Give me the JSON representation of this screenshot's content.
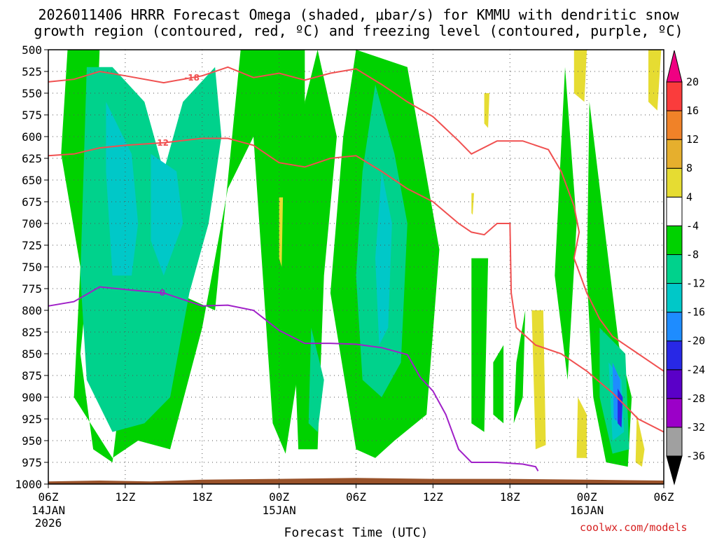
{
  "title_line1": "2026011406 HRRR Forecast Omega (shaded, μbar/s) for KMMU with dendritic snow",
  "title_line2": "growth region (contoured, red, ºC) and freezing level (contoured, purple, ºC)",
  "watermark": "coolwx.com/models",
  "chart_data": {
    "type": "heatmap",
    "title": "2026011406 HRRR Forecast Omega (shaded, μbar/s) for KMMU with dendritic snow growth region (contoured, red, ºC) and freezing level (contoured, purple, ºC)",
    "xlabel": "Forecast Time (UTC)",
    "ylabel": "",
    "x_ticks": [
      {
        "hour": 0,
        "label": "06Z",
        "sub": [
          "14JAN",
          "2026"
        ]
      },
      {
        "hour": 6,
        "label": "12Z",
        "sub": []
      },
      {
        "hour": 12,
        "label": "18Z",
        "sub": []
      },
      {
        "hour": 18,
        "label": "00Z",
        "sub": [
          "15JAN"
        ]
      },
      {
        "hour": 24,
        "label": "06Z",
        "sub": []
      },
      {
        "hour": 30,
        "label": "12Z",
        "sub": []
      },
      {
        "hour": 36,
        "label": "18Z",
        "sub": []
      },
      {
        "hour": 42,
        "label": "00Z",
        "sub": [
          "16JAN"
        ]
      },
      {
        "hour": 48,
        "label": "06Z",
        "sub": []
      }
    ],
    "xlim": [
      0,
      48
    ],
    "y_ticks": [
      500,
      525,
      550,
      575,
      600,
      625,
      650,
      675,
      700,
      725,
      750,
      775,
      800,
      825,
      850,
      875,
      900,
      925,
      950,
      975,
      1000
    ],
    "ylim": [
      1000,
      500
    ],
    "y_units": "hPa",
    "grid": true,
    "colorbar": {
      "levels": [
        -36,
        -32,
        -28,
        -24,
        -20,
        -16,
        -12,
        -8,
        -4,
        4,
        8,
        12,
        16,
        20
      ],
      "colors": [
        "#a0a0a0",
        "#9b00c8",
        "#5a00c8",
        "#2828e6",
        "#1e8cff",
        "#00c8c8",
        "#00d28c",
        "#00d200",
        "#ffffff",
        "#e6dc32",
        "#e6af2d",
        "#f08228",
        "#fa3c3c",
        "#f00082"
      ],
      "extend": "both",
      "under_color": "#000000",
      "over_color": "#f00082"
    },
    "omega_regions": [
      {
        "level": -8,
        "poly": [
          [
            1.5,
            500
          ],
          [
            4,
            500
          ],
          [
            3.5,
            700
          ],
          [
            2.5,
            850
          ],
          [
            3.5,
            960
          ],
          [
            5,
            975
          ],
          [
            6,
            850
          ],
          [
            10,
            780
          ],
          [
            13,
            800
          ],
          [
            15,
            500
          ],
          [
            20,
            500
          ],
          [
            20,
            820
          ],
          [
            18.5,
            965
          ],
          [
            17.5,
            930
          ],
          [
            16,
            600
          ],
          [
            14,
            660
          ],
          [
            12,
            820
          ],
          [
            9.5,
            960
          ],
          [
            7,
            950
          ],
          [
            5,
            970
          ],
          [
            2,
            900
          ],
          [
            2.5,
            750
          ],
          [
            1,
            620
          ]
        ]
      },
      {
        "level": -8,
        "poly": [
          [
            24,
            500
          ],
          [
            28,
            520
          ],
          [
            30.5,
            730
          ],
          [
            29.5,
            920
          ],
          [
            27,
            950
          ],
          [
            25.5,
            970
          ],
          [
            24,
            960
          ],
          [
            22,
            780
          ],
          [
            23,
            600
          ]
        ]
      },
      {
        "level": -8,
        "poly": [
          [
            21,
            500
          ],
          [
            22.5,
            600
          ],
          [
            21.5,
            760
          ],
          [
            21,
            960
          ],
          [
            19.5,
            960
          ],
          [
            19,
            760
          ],
          [
            20,
            560
          ]
        ]
      },
      {
        "level": -8,
        "poly": [
          [
            42.2,
            560
          ],
          [
            43.5,
            720
          ],
          [
            44.5,
            840
          ],
          [
            45.5,
            900
          ],
          [
            45.2,
            980
          ],
          [
            43.5,
            975
          ],
          [
            42.5,
            900
          ],
          [
            42,
            760
          ]
        ]
      },
      {
        "level": -8,
        "poly": [
          [
            40.3,
            520
          ],
          [
            41.2,
            700
          ],
          [
            40.5,
            880
          ],
          [
            39.5,
            760
          ]
        ]
      },
      {
        "level": -8,
        "poly": [
          [
            36.5,
            860
          ],
          [
            37.2,
            800
          ],
          [
            37,
            900
          ],
          [
            36.3,
            930
          ]
        ]
      },
      {
        "level": -8,
        "poly": [
          [
            34.7,
            860
          ],
          [
            35.5,
            840
          ],
          [
            35.5,
            930
          ],
          [
            34.7,
            920
          ]
        ]
      },
      {
        "level": -8,
        "poly": [
          [
            33,
            740
          ],
          [
            34.3,
            740
          ],
          [
            34,
            940
          ],
          [
            33,
            930
          ]
        ]
      },
      {
        "level": -12,
        "poly": [
          [
            3,
            520
          ],
          [
            5,
            520
          ],
          [
            7.5,
            560
          ],
          [
            9,
            640
          ],
          [
            10.5,
            560
          ],
          [
            13,
            520
          ],
          [
            13.5,
            600
          ],
          [
            12.5,
            700
          ],
          [
            11,
            780
          ],
          [
            9.5,
            900
          ],
          [
            7.5,
            930
          ],
          [
            5,
            940
          ],
          [
            3,
            880
          ],
          [
            2.5,
            760
          ]
        ]
      },
      {
        "level": -12,
        "poly": [
          [
            25.5,
            540
          ],
          [
            27,
            620
          ],
          [
            28,
            700
          ],
          [
            27.5,
            860
          ],
          [
            26,
            900
          ],
          [
            24.5,
            880
          ],
          [
            24,
            760
          ],
          [
            24.5,
            640
          ]
        ]
      },
      {
        "level": -12,
        "poly": [
          [
            43,
            820
          ],
          [
            45,
            850
          ],
          [
            45.3,
            960
          ],
          [
            44,
            965
          ],
          [
            43,
            900
          ]
        ]
      },
      {
        "level": -12,
        "poly": [
          [
            20.5,
            820
          ],
          [
            21.5,
            880
          ],
          [
            21,
            940
          ],
          [
            20.3,
            930
          ]
        ]
      },
      {
        "level": -16,
        "poly": [
          [
            4.5,
            560
          ],
          [
            6.5,
            620
          ],
          [
            7,
            700
          ],
          [
            6.5,
            760
          ],
          [
            5,
            760
          ],
          [
            4.5,
            640
          ]
        ]
      },
      {
        "level": -16,
        "poly": [
          [
            8,
            620
          ],
          [
            10,
            640
          ],
          [
            10.5,
            700
          ],
          [
            9,
            760
          ],
          [
            8,
            720
          ]
        ]
      },
      {
        "level": -16,
        "poly": [
          [
            26,
            640
          ],
          [
            26.8,
            700
          ],
          [
            26.5,
            820
          ],
          [
            25.8,
            840
          ],
          [
            25.5,
            740
          ]
        ]
      },
      {
        "level": -16,
        "poly": [
          [
            43.7,
            860
          ],
          [
            44.7,
            880
          ],
          [
            44.9,
            940
          ],
          [
            44,
            950
          ]
        ]
      },
      {
        "level": -20,
        "poly": [
          [
            44,
            860
          ],
          [
            44.6,
            880
          ],
          [
            44.6,
            930
          ],
          [
            44.1,
            925
          ]
        ]
      },
      {
        "level": -24,
        "poly": [
          [
            44.4,
            890
          ],
          [
            44.8,
            900
          ],
          [
            44.7,
            935
          ],
          [
            44.4,
            930
          ]
        ]
      },
      {
        "level": 4,
        "poly": [
          [
            37.7,
            800
          ],
          [
            38.6,
            800
          ],
          [
            38.8,
            955
          ],
          [
            38,
            960
          ]
        ]
      },
      {
        "level": 4,
        "poly": [
          [
            41.3,
            900
          ],
          [
            42,
            920
          ],
          [
            42,
            970
          ],
          [
            41.2,
            970
          ]
        ]
      },
      {
        "level": 4,
        "poly": [
          [
            45.9,
            920
          ],
          [
            46.5,
            960
          ],
          [
            46.3,
            980
          ],
          [
            45.8,
            975
          ]
        ]
      },
      {
        "level": 4,
        "poly": [
          [
            46.8,
            500
          ],
          [
            47.8,
            500
          ],
          [
            47.5,
            570
          ],
          [
            46.8,
            560
          ]
        ]
      },
      {
        "level": 4,
        "poly": [
          [
            41,
            500
          ],
          [
            42,
            500
          ],
          [
            41.8,
            560
          ],
          [
            41,
            550
          ]
        ]
      },
      {
        "level": 4,
        "poly": [
          [
            18,
            670
          ],
          [
            18.3,
            670
          ],
          [
            18.2,
            750
          ],
          [
            18,
            740
          ]
        ]
      },
      {
        "level": 4,
        "poly": [
          [
            34,
            550
          ],
          [
            34.4,
            550
          ],
          [
            34.3,
            590
          ],
          [
            34,
            585
          ]
        ]
      },
      {
        "level": 4,
        "poly": [
          [
            33,
            665
          ],
          [
            33.2,
            665
          ],
          [
            33.1,
            690
          ],
          [
            33,
            688
          ]
        ]
      }
    ],
    "contours": [
      {
        "name": "-18",
        "color": "#f05050",
        "label_at_hour": 11.2,
        "points": [
          [
            0,
            537
          ],
          [
            2,
            534
          ],
          [
            4,
            525
          ],
          [
            6,
            530
          ],
          [
            9,
            538
          ],
          [
            12,
            530
          ],
          [
            14,
            520
          ],
          [
            16,
            532
          ],
          [
            18,
            527
          ],
          [
            20,
            535
          ],
          [
            22,
            527
          ],
          [
            24,
            522
          ],
          [
            26,
            540
          ],
          [
            28,
            560
          ],
          [
            30,
            577
          ],
          [
            32,
            605
          ],
          [
            33,
            620
          ],
          [
            35,
            605
          ],
          [
            37,
            605
          ],
          [
            39,
            615
          ],
          [
            40,
            640
          ],
          [
            41,
            680
          ],
          [
            41.4,
            710
          ],
          [
            41,
            740
          ],
          [
            42,
            780
          ],
          [
            43,
            810
          ],
          [
            44,
            830
          ],
          [
            46,
            850
          ],
          [
            48,
            870
          ]
        ]
      },
      {
        "name": "-12",
        "color": "#f05050",
        "label_at_hour": 8.8,
        "points": [
          [
            0,
            622
          ],
          [
            2,
            620
          ],
          [
            4,
            613
          ],
          [
            6,
            610
          ],
          [
            9,
            607
          ],
          [
            12,
            602
          ],
          [
            14,
            602
          ],
          [
            16,
            610
          ],
          [
            18,
            630
          ],
          [
            20,
            635
          ],
          [
            22,
            625
          ],
          [
            24,
            622
          ],
          [
            26,
            640
          ],
          [
            28,
            660
          ],
          [
            30,
            675
          ],
          [
            32,
            700
          ],
          [
            33,
            710
          ],
          [
            34,
            713
          ],
          [
            35,
            700
          ],
          [
            36,
            700
          ],
          [
            36.1,
            780
          ],
          [
            36.5,
            820
          ],
          [
            38,
            840
          ],
          [
            40,
            850
          ],
          [
            42,
            870
          ],
          [
            44,
            895
          ],
          [
            46,
            925
          ],
          [
            48,
            940
          ]
        ]
      },
      {
        "name": "0",
        "color": "#a020c8",
        "label_at_hour": 8.9,
        "points": [
          [
            0,
            795
          ],
          [
            2,
            790
          ],
          [
            4,
            773
          ],
          [
            6,
            776
          ],
          [
            9,
            780
          ],
          [
            12,
            795
          ],
          [
            14,
            794
          ],
          [
            16,
            800
          ],
          [
            18,
            823
          ],
          [
            20,
            838
          ],
          [
            22,
            838
          ],
          [
            24,
            839
          ],
          [
            26,
            843
          ],
          [
            28,
            851
          ],
          [
            29,
            877
          ],
          [
            30,
            893
          ],
          [
            31,
            920
          ],
          [
            32,
            960
          ],
          [
            33,
            975
          ],
          [
            34,
            975
          ],
          [
            35,
            975
          ],
          [
            37,
            977
          ],
          [
            38,
            980
          ],
          [
            38.2,
            985
          ]
        ]
      }
    ],
    "ground": {
      "color": "#99522a",
      "pressure": [
        [
          0,
          997
        ],
        [
          4,
          996
        ],
        [
          8,
          997
        ],
        [
          12,
          995
        ],
        [
          18,
          994
        ],
        [
          24,
          993
        ],
        [
          30,
          994
        ],
        [
          36,
          994
        ],
        [
          42,
          995
        ],
        [
          48,
          996
        ]
      ]
    }
  }
}
